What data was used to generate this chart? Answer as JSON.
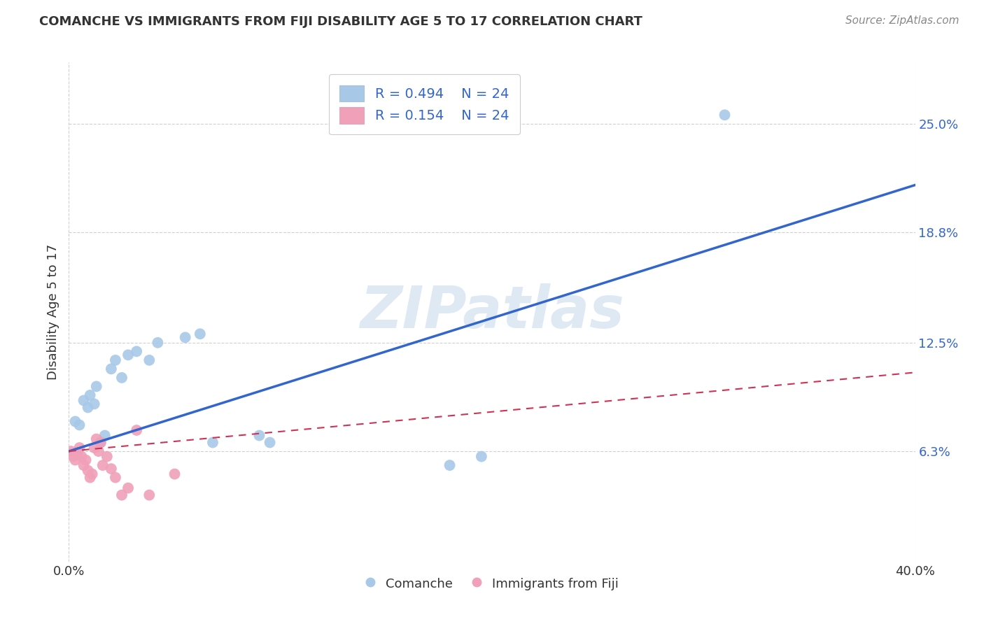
{
  "title": "COMANCHE VS IMMIGRANTS FROM FIJI DISABILITY AGE 5 TO 17 CORRELATION CHART",
  "source": "Source: ZipAtlas.com",
  "ylabel": "Disability Age 5 to 17",
  "xlim": [
    0.0,
    0.4
  ],
  "ylim": [
    0.0,
    0.285
  ],
  "xtick_labels": [
    "0.0%",
    "40.0%"
  ],
  "xtick_positions": [
    0.0,
    0.4
  ],
  "ytick_labels": [
    "6.3%",
    "12.5%",
    "18.8%",
    "25.0%"
  ],
  "ytick_positions": [
    0.063,
    0.125,
    0.188,
    0.25
  ],
  "grid_color": "#d0d0d0",
  "background_color": "#ffffff",
  "watermark_text": "ZIPatlas",
  "legend_r1_label": "R = 0.494",
  "legend_r2_label": "R = 0.154",
  "legend_n": "N = 24",
  "comanche_dot_color": "#a8c8e8",
  "comanche_line_color": "#3366cc",
  "fiji_dot_color": "#f0a0b8",
  "fiji_line_color": "#cc3355",
  "comanche_scatter_x": [
    0.003,
    0.005,
    0.007,
    0.009,
    0.01,
    0.012,
    0.013,
    0.015,
    0.017,
    0.02,
    0.022,
    0.025,
    0.028,
    0.032,
    0.038,
    0.042,
    0.055,
    0.062,
    0.068,
    0.09,
    0.095,
    0.18,
    0.195,
    0.31
  ],
  "comanche_scatter_y": [
    0.08,
    0.078,
    0.092,
    0.088,
    0.095,
    0.09,
    0.1,
    0.068,
    0.072,
    0.11,
    0.115,
    0.105,
    0.118,
    0.12,
    0.115,
    0.125,
    0.128,
    0.13,
    0.068,
    0.072,
    0.068,
    0.055,
    0.06,
    0.255
  ],
  "fiji_scatter_x": [
    0.001,
    0.002,
    0.003,
    0.004,
    0.005,
    0.006,
    0.007,
    0.008,
    0.009,
    0.01,
    0.011,
    0.012,
    0.013,
    0.014,
    0.015,
    0.016,
    0.018,
    0.02,
    0.022,
    0.025,
    0.028,
    0.032,
    0.038,
    0.05
  ],
  "fiji_scatter_y": [
    0.063,
    0.06,
    0.058,
    0.062,
    0.065,
    0.06,
    0.055,
    0.058,
    0.052,
    0.048,
    0.05,
    0.065,
    0.07,
    0.063,
    0.068,
    0.055,
    0.06,
    0.053,
    0.048,
    0.038,
    0.042,
    0.075,
    0.038,
    0.05
  ],
  "comanche_line_x": [
    0.0,
    0.4
  ],
  "comanche_line_y": [
    0.063,
    0.215
  ],
  "fiji_line_x": [
    0.0,
    0.4
  ],
  "fiji_line_y": [
    0.063,
    0.108
  ],
  "title_fontsize": 13,
  "tick_fontsize": 13,
  "ylabel_fontsize": 13,
  "source_fontsize": 11,
  "legend_fontsize": 14,
  "watermark_fontsize": 60,
  "watermark_color": "#c5d8ec",
  "watermark_alpha": 0.55,
  "title_color": "#333333",
  "source_color": "#888888",
  "ylabel_color": "#333333",
  "ytick_color": "#3366cc",
  "xtick_color": "#333333"
}
